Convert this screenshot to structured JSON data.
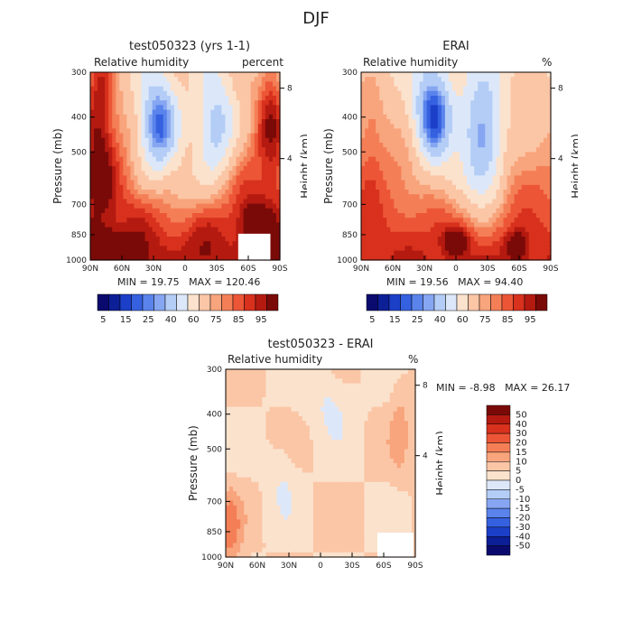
{
  "figure_title": "DJF",
  "levels_abs": [
    5,
    10,
    15,
    20,
    25,
    30,
    40,
    50,
    60,
    70,
    75,
    80,
    85,
    90,
    95
  ],
  "colors_abs": [
    "#0a0a6e",
    "#0c1f96",
    "#1c3fc8",
    "#3561e0",
    "#5a84ec",
    "#86a6f2",
    "#b4cdf6",
    "#dce8f9",
    "#fbe2cd",
    "#fbc6a6",
    "#f8a47c",
    "#f47f57",
    "#ec5636",
    "#d8311d",
    "#b41a10",
    "#7a0a08"
  ],
  "colors_diff": [
    "#0a0a6e",
    "#0c1f96",
    "#1c3fc8",
    "#3561e0",
    "#5a84ec",
    "#86a6f2",
    "#b4cdf6",
    "#dce8f9",
    "#fbe2cd",
    "#fbc6a6",
    "#f8a47c",
    "#f47f57",
    "#ec5636",
    "#d8311d",
    "#b41a10",
    "#7a0a08"
  ],
  "chart_data": [
    {
      "type": "heatmap",
      "title": "test050323 (yrs 1-1)",
      "left_label": "Relative humidity",
      "right_label": "percent",
      "ylabel": "Pressure (mb)",
      "y2label": "Height (km)",
      "x_ticks": [
        "90N",
        "60N",
        "30N",
        "0",
        "30S",
        "60S",
        "90S"
      ],
      "y_ticks": [
        "300",
        "400",
        "500",
        "700",
        "850",
        "1000"
      ],
      "y2_ticks": [
        "8",
        "4"
      ],
      "min_text": "MIN =   19.75",
      "max_text": "MAX =  120.46",
      "legend_labels": [
        "5",
        "15",
        "25",
        "40",
        "60",
        "75",
        "85",
        "95"
      ],
      "min": 19.75,
      "max": 120.46
    },
    {
      "type": "heatmap",
      "title": "ERAI",
      "left_label": "Relative humidity",
      "right_label": "%",
      "ylabel": "Pressure (mb)",
      "y2label": "Height (km)",
      "x_ticks": [
        "90N",
        "60N",
        "30N",
        "0",
        "30S",
        "60S",
        "90S"
      ],
      "y_ticks": [
        "300",
        "400",
        "500",
        "700",
        "850",
        "1000"
      ],
      "y2_ticks": [
        "8",
        "4"
      ],
      "min_text": "MIN =   19.56",
      "max_text": "MAX =   94.40",
      "legend_labels": [
        "5",
        "15",
        "25",
        "40",
        "60",
        "75",
        "85",
        "95"
      ],
      "min": 19.56,
      "max": 94.4
    },
    {
      "type": "heatmap",
      "title": "test050323 - ERAI",
      "left_label": "Relative humidity",
      "right_label": "%",
      "ylabel": "Pressure (mb)",
      "y2label": "Height (km)",
      "x_ticks": [
        "90N",
        "60N",
        "30N",
        "0",
        "30S",
        "60S",
        "90S"
      ],
      "y_ticks": [
        "300",
        "400",
        "500",
        "700",
        "850",
        "1000"
      ],
      "y2_ticks": [
        "8",
        "4"
      ],
      "min_text": "MIN =   -8.98",
      "max_text": "MAX =   26.17",
      "legend_labels": [
        "50",
        "40",
        "30",
        "20",
        "15",
        "10",
        "5",
        "0",
        "-5",
        "-10",
        "-15",
        "-20",
        "-30",
        "-40",
        "-50"
      ],
      "min": -8.98,
      "max": 26.17
    }
  ]
}
